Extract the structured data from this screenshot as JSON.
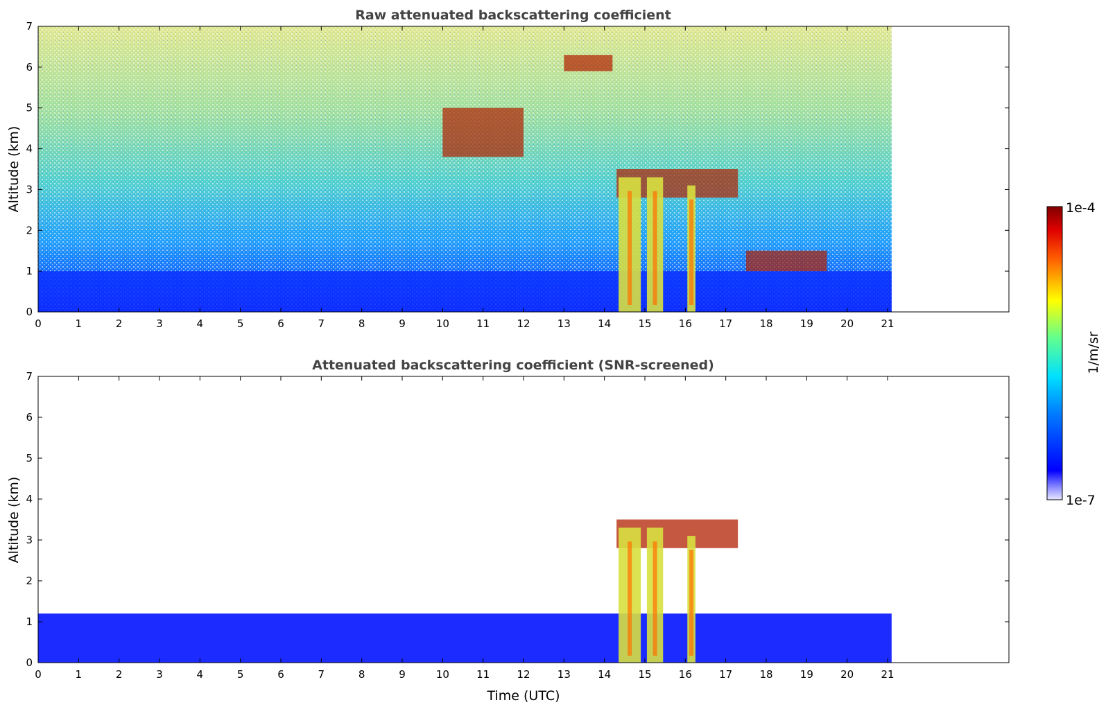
{
  "chart_data": [
    {
      "type": "heatmap",
      "title": "Raw attenuated backscattering coefficient",
      "xlabel": "",
      "ylabel": "Altitude (km)",
      "xlim": [
        0,
        24
      ],
      "ylim": [
        0,
        7
      ],
      "x_ticks": [
        "0",
        "1",
        "2",
        "3",
        "4",
        "5",
        "6",
        "7",
        "8",
        "9",
        "10",
        "11",
        "12",
        "13",
        "14",
        "15",
        "16",
        "17",
        "18",
        "19",
        "20",
        "21"
      ],
      "y_ticks": [
        "0",
        "1",
        "2",
        "3",
        "4",
        "5",
        "6",
        "7"
      ],
      "data_extent_hours": [
        0,
        21.1
      ],
      "screened": false,
      "features": [
        {
          "kind": "boundary-layer",
          "t": [
            0,
            21.1
          ],
          "alt_km": [
            0,
            1.0
          ]
        },
        {
          "kind": "cloud-layer",
          "t": [
            14.3,
            17.3
          ],
          "alt_km": [
            2.8,
            3.5
          ]
        },
        {
          "kind": "precipitation-shaft",
          "t": [
            14.35,
            14.9
          ],
          "alt_km": [
            0,
            3.3
          ]
        },
        {
          "kind": "precipitation-shaft",
          "t": [
            15.05,
            15.45
          ],
          "alt_km": [
            0,
            3.3
          ]
        },
        {
          "kind": "precipitation-shaft",
          "t": [
            16.05,
            16.25
          ],
          "alt_km": [
            0,
            3.1
          ]
        },
        {
          "kind": "cloud-layer",
          "t": [
            10.0,
            12.0
          ],
          "alt_km": [
            3.8,
            5.0
          ]
        },
        {
          "kind": "cloud-layer",
          "t": [
            13.0,
            14.2
          ],
          "alt_km": [
            5.9,
            6.3
          ]
        },
        {
          "kind": "cloud-layer",
          "t": [
            17.5,
            19.5
          ],
          "alt_km": [
            1.0,
            1.5
          ]
        }
      ]
    },
    {
      "type": "heatmap",
      "title": "Attenuated backscattering coefficient (SNR-screened)",
      "xlabel": "Time (UTC)",
      "ylabel": "Altitude (km)",
      "xlim": [
        0,
        24
      ],
      "ylim": [
        0,
        7
      ],
      "x_ticks": [
        "0",
        "1",
        "2",
        "3",
        "4",
        "5",
        "6",
        "7",
        "8",
        "9",
        "10",
        "11",
        "12",
        "13",
        "14",
        "15",
        "16",
        "17",
        "18",
        "19",
        "20",
        "21"
      ],
      "y_ticks": [
        "0",
        "1",
        "2",
        "3",
        "4",
        "5",
        "6",
        "7"
      ],
      "data_extent_hours": [
        0,
        21.1
      ],
      "screened": true,
      "features": [
        {
          "kind": "boundary-layer",
          "t": [
            0,
            21.1
          ],
          "alt_km": [
            0,
            1.2
          ]
        },
        {
          "kind": "cloud-layer",
          "t": [
            14.3,
            17.3
          ],
          "alt_km": [
            2.8,
            3.5
          ]
        },
        {
          "kind": "precipitation-shaft",
          "t": [
            14.35,
            14.9
          ],
          "alt_km": [
            0,
            3.3
          ]
        },
        {
          "kind": "precipitation-shaft",
          "t": [
            15.05,
            15.45
          ],
          "alt_km": [
            0,
            3.3
          ]
        },
        {
          "kind": "precipitation-shaft",
          "t": [
            16.05,
            16.25
          ],
          "alt_km": [
            0,
            3.1
          ]
        }
      ]
    }
  ],
  "colorbar": {
    "label": "1/m/sr",
    "max_label": "1e-4",
    "min_label": "1e-7",
    "colormap": "jet",
    "scale": "log"
  },
  "colors": {
    "low": "#0000ff",
    "mid": "#00e0c0",
    "high": "#ffd000",
    "max": "#7f0000"
  }
}
